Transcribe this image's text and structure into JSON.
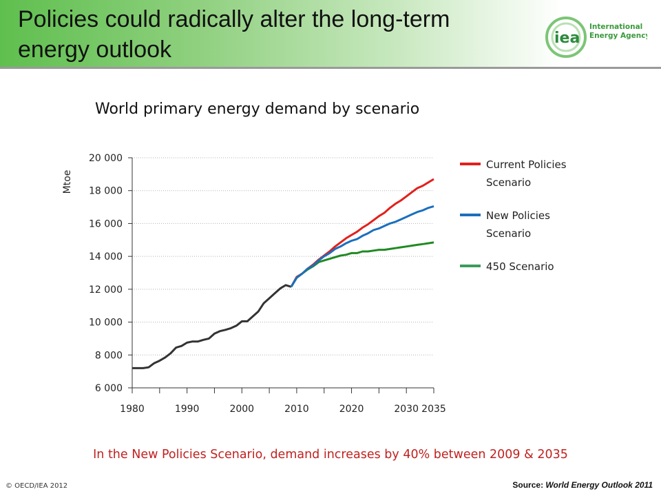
{
  "slide": {
    "title": "Policies could radically alter the long-term energy outlook",
    "logo_text_line1": "International",
    "logo_text_line2": "Energy Agency",
    "logo_mark": "iea",
    "caption": "In the New Policies Scenario, demand increases by 40% between 2009 & 2035",
    "copyright": "© OECD/IEA 2012",
    "source_label": "Source: ",
    "source_title": "World Energy Outlook 2011",
    "colors": {
      "banner_green": "#5fbf4e",
      "caption_red": "#c0211f"
    }
  },
  "chart_data": {
    "type": "line",
    "title": "World primary energy demand by scenario",
    "ylabel": "Mtoe",
    "xlabel": "",
    "xlim": [
      1980,
      2035
    ],
    "ylim": [
      6000,
      20000
    ],
    "x_ticks": [
      1980,
      1990,
      2000,
      2010,
      2020,
      2030,
      2035
    ],
    "x_tick_labels": [
      "1980",
      "1990",
      "2000",
      "2010",
      "2020",
      "2030",
      "2035"
    ],
    "y_ticks": [
      6000,
      8000,
      10000,
      12000,
      14000,
      16000,
      18000,
      20000
    ],
    "y_tick_labels": [
      "6 000",
      "8 000",
      "10 000",
      "12 000",
      "14 000",
      "16 000",
      "18 000",
      "20 000"
    ],
    "grid": "horizontal dotted",
    "legend_position": "right",
    "historical": {
      "color": "#333333",
      "x": [
        1980,
        1981,
        1982,
        1983,
        1984,
        1985,
        1986,
        1987,
        1988,
        1989,
        1990,
        1991,
        1992,
        1993,
        1994,
        1995,
        1996,
        1997,
        1998,
        1999,
        2000,
        2001,
        2002,
        2003,
        2004,
        2005,
        2006,
        2007,
        2008,
        2009
      ],
      "y": [
        7200,
        7200,
        7200,
        7250,
        7500,
        7650,
        7850,
        8100,
        8450,
        8550,
        8750,
        8820,
        8820,
        8920,
        9000,
        9300,
        9450,
        9530,
        9630,
        9780,
        10050,
        10050,
        10350,
        10650,
        11150,
        11450,
        11750,
        12050,
        12250,
        12150
      ]
    },
    "series": [
      {
        "name": "Current Policies Scenario",
        "color": "#e3201b",
        "x": [
          2009,
          2010,
          2011,
          2012,
          2013,
          2014,
          2015,
          2016,
          2017,
          2018,
          2019,
          2020,
          2021,
          2022,
          2023,
          2024,
          2025,
          2026,
          2027,
          2028,
          2029,
          2030,
          2031,
          2032,
          2033,
          2034,
          2035
        ],
        "y": [
          12150,
          12750,
          12950,
          13250,
          13500,
          13800,
          14050,
          14300,
          14600,
          14850,
          15100,
          15300,
          15500,
          15750,
          15950,
          16200,
          16450,
          16650,
          16950,
          17200,
          17400,
          17650,
          17900,
          18150,
          18300,
          18500,
          18700
        ]
      },
      {
        "name": "New Policies Scenario",
        "color": "#1b6fbd",
        "x": [
          2009,
          2010,
          2011,
          2012,
          2013,
          2014,
          2015,
          2016,
          2017,
          2018,
          2019,
          2020,
          2021,
          2022,
          2023,
          2024,
          2025,
          2026,
          2027,
          2028,
          2029,
          2030,
          2031,
          2032,
          2033,
          2034,
          2035
        ],
        "y": [
          12150,
          12700,
          12950,
          13250,
          13450,
          13750,
          14000,
          14200,
          14450,
          14600,
          14800,
          14950,
          15050,
          15250,
          15400,
          15600,
          15700,
          15850,
          16000,
          16100,
          16250,
          16400,
          16550,
          16700,
          16800,
          16950,
          17050
        ]
      },
      {
        "name": "450 Scenario",
        "color": "#1f8a22",
        "x": [
          2009,
          2010,
          2011,
          2012,
          2013,
          2014,
          2015,
          2016,
          2017,
          2018,
          2019,
          2020,
          2021,
          2022,
          2023,
          2024,
          2025,
          2026,
          2027,
          2028,
          2029,
          2030,
          2031,
          2032,
          2033,
          2034,
          2035
        ],
        "y": [
          12150,
          12700,
          12950,
          13200,
          13400,
          13650,
          13750,
          13850,
          13950,
          14050,
          14100,
          14200,
          14200,
          14300,
          14300,
          14350,
          14400,
          14400,
          14450,
          14500,
          14550,
          14600,
          14650,
          14700,
          14750,
          14800,
          14850
        ]
      }
    ],
    "legend_swatch_colors": [
      "#e3201b",
      "#1b6fbd",
      "#3c9a5c"
    ]
  }
}
